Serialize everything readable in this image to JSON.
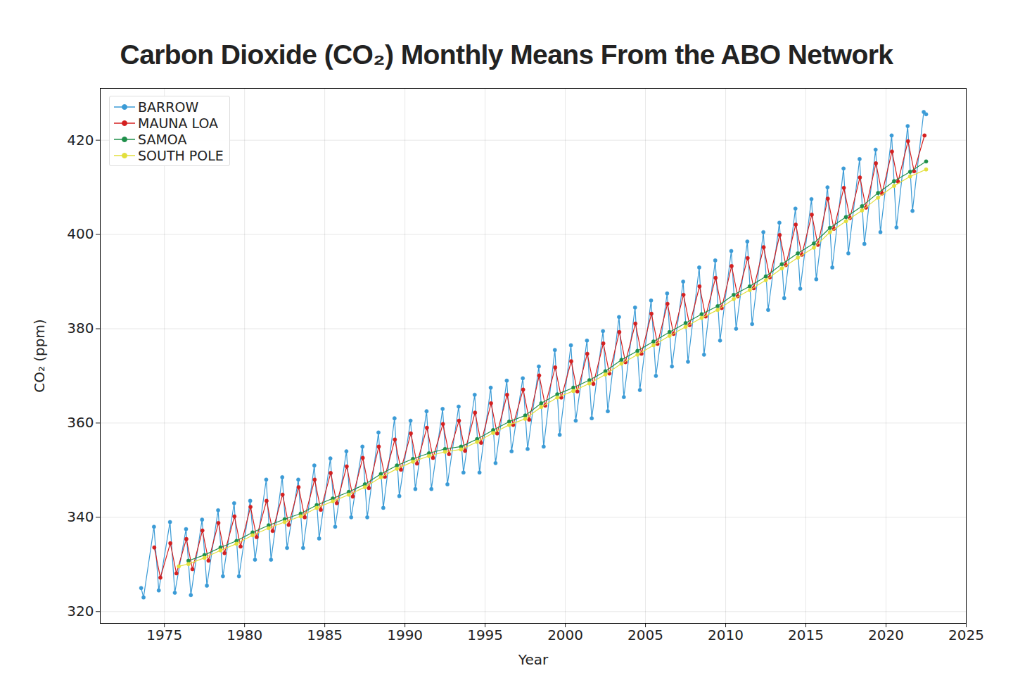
{
  "chart_data": {
    "type": "line",
    "title": "Carbon Dioxide (CO₂) Monthly Means From the ABO Network",
    "x_label": "Year",
    "y_label": "CO₂ (ppm)",
    "xlim": [
      1971,
      2025
    ],
    "xticks": [
      1975,
      1980,
      1985,
      1990,
      1995,
      2000,
      2005,
      2010,
      2015,
      2020,
      2025
    ],
    "ylim": [
      317.5,
      431
    ],
    "yticks": [
      320,
      340,
      360,
      380,
      400,
      420
    ],
    "grid": true,
    "legend": "upper left",
    "series": [
      {
        "name": "BARROW",
        "color": "#3b9bd6",
        "marker": "circle",
        "x": [
          1973.55,
          1973.7,
          1974.35,
          1974.65,
          1975.35,
          1975.65,
          1976.35,
          1976.65,
          1977.35,
          1977.65,
          1978.35,
          1978.65,
          1979.35,
          1979.65,
          1980.35,
          1980.65,
          1981.35,
          1981.65,
          1982.35,
          1982.65,
          1983.35,
          1983.65,
          1984.35,
          1984.65,
          1985.35,
          1985.65,
          1986.35,
          1986.65,
          1987.35,
          1987.65,
          1988.35,
          1988.65,
          1989.35,
          1989.65,
          1990.35,
          1990.65,
          1991.35,
          1991.65,
          1992.35,
          1992.65,
          1993.35,
          1993.65,
          1994.35,
          1994.65,
          1995.35,
          1995.65,
          1996.35,
          1996.65,
          1997.35,
          1997.65,
          1998.35,
          1998.65,
          1999.35,
          1999.65,
          2000.35,
          2000.65,
          2001.35,
          2001.65,
          2002.35,
          2002.65,
          2003.35,
          2003.65,
          2004.35,
          2004.65,
          2005.35,
          2005.65,
          2006.35,
          2006.65,
          2007.35,
          2007.65,
          2008.35,
          2008.65,
          2009.35,
          2009.65,
          2010.35,
          2010.65,
          2011.35,
          2011.65,
          2012.35,
          2012.65,
          2013.35,
          2013.65,
          2014.35,
          2014.65,
          2015.35,
          2015.65,
          2016.35,
          2016.65,
          2017.35,
          2017.65,
          2018.35,
          2018.65,
          2019.35,
          2019.65,
          2020.35,
          2020.65,
          2021.35,
          2021.65,
          2022.35,
          2022.5
        ],
        "values": [
          325.0,
          323.0,
          338.0,
          324.5,
          339.0,
          324.0,
          337.5,
          323.5,
          339.5,
          325.5,
          341.5,
          327.5,
          343.0,
          327.5,
          343.5,
          331.0,
          348.0,
          331.0,
          348.5,
          333.5,
          348.0,
          333.5,
          351.0,
          335.5,
          352.5,
          338.0,
          354.0,
          340.0,
          355.0,
          340.0,
          358.0,
          342.0,
          361.0,
          344.5,
          360.5,
          346.0,
          362.5,
          346.0,
          363.0,
          347.0,
          363.5,
          349.5,
          366.0,
          349.5,
          367.5,
          351.5,
          369.0,
          354.0,
          369.5,
          354.5,
          372.0,
          355.0,
          375.5,
          357.5,
          376.5,
          360.5,
          377.5,
          361.0,
          379.5,
          362.5,
          382.5,
          365.5,
          384.5,
          367.0,
          386.0,
          370.0,
          387.5,
          372.0,
          390.0,
          373.0,
          393.0,
          374.5,
          394.5,
          377.5,
          396.5,
          380.0,
          398.5,
          381.0,
          400.5,
          384.0,
          402.5,
          386.5,
          405.5,
          388.5,
          407.5,
          390.5,
          410.0,
          393.0,
          414.0,
          396.0,
          416.0,
          398.0,
          418.0,
          400.5,
          421.0,
          401.5,
          423.0,
          405.0,
          426.0,
          425.5
        ]
      },
      {
        "name": "MAUNA LOA",
        "color": "#d42020",
        "marker": "circle",
        "x": [
          1974.37,
          1974.75,
          1975.37,
          1975.75,
          1976.37,
          1976.75,
          1977.37,
          1977.75,
          1978.37,
          1978.75,
          1979.37,
          1979.75,
          1980.37,
          1980.75,
          1981.37,
          1981.75,
          1982.37,
          1982.75,
          1983.37,
          1983.75,
          1984.37,
          1984.75,
          1985.37,
          1985.75,
          1986.37,
          1986.75,
          1987.37,
          1987.75,
          1988.37,
          1988.75,
          1989.37,
          1989.75,
          1990.37,
          1990.75,
          1991.37,
          1991.75,
          1992.37,
          1992.75,
          1993.37,
          1993.75,
          1994.37,
          1994.75,
          1995.37,
          1995.75,
          1996.37,
          1996.75,
          1997.37,
          1997.75,
          1998.37,
          1998.75,
          1999.37,
          1999.75,
          2000.37,
          2000.75,
          2001.37,
          2001.75,
          2002.37,
          2002.75,
          2003.37,
          2003.75,
          2004.37,
          2004.75,
          2005.37,
          2005.75,
          2006.37,
          2006.75,
          2007.37,
          2007.75,
          2008.37,
          2008.75,
          2009.37,
          2009.75,
          2010.37,
          2010.75,
          2011.37,
          2011.75,
          2012.37,
          2012.75,
          2013.37,
          2013.75,
          2014.37,
          2014.75,
          2015.37,
          2015.75,
          2016.37,
          2016.75,
          2017.37,
          2017.75,
          2018.37,
          2018.75,
          2019.37,
          2019.75,
          2020.37,
          2020.75,
          2021.37,
          2021.75,
          2022.4
        ],
        "values": [
          333.6,
          327.2,
          334.5,
          328.1,
          335.4,
          329.0,
          337.2,
          330.8,
          338.8,
          332.4,
          340.2,
          333.8,
          342.2,
          335.8,
          343.5,
          337.1,
          344.8,
          338.4,
          346.4,
          340.0,
          348.0,
          341.6,
          349.4,
          343.0,
          350.8,
          344.4,
          352.6,
          346.2,
          355.0,
          348.6,
          356.5,
          350.1,
          357.8,
          351.4,
          359.0,
          352.6,
          359.8,
          353.4,
          360.5,
          354.1,
          362.2,
          355.8,
          364.2,
          357.8,
          366.0,
          359.6,
          367.1,
          360.7,
          370.1,
          363.7,
          371.8,
          365.4,
          373.1,
          366.7,
          374.7,
          368.3,
          376.9,
          370.5,
          379.3,
          372.9,
          381.1,
          374.7,
          383.2,
          376.8,
          385.3,
          378.9,
          387.2,
          380.8,
          389.0,
          382.6,
          390.8,
          384.4,
          393.3,
          386.9,
          395.0,
          388.6,
          397.3,
          390.9,
          399.9,
          393.5,
          402.1,
          395.7,
          404.2,
          397.8,
          407.6,
          401.2,
          409.9,
          403.5,
          412.1,
          405.7,
          415.1,
          408.7,
          417.6,
          411.2,
          419.8,
          413.4,
          421.0
        ]
      },
      {
        "name": "SAMOA",
        "color": "#1f8f4a",
        "marker": "circle",
        "x": [
          1976.5,
          1977.5,
          1978.5,
          1979.5,
          1980.5,
          1981.5,
          1982.5,
          1983.5,
          1984.5,
          1985.5,
          1986.5,
          1987.5,
          1988.5,
          1989.5,
          1990.5,
          1991.5,
          1992.5,
          1993.5,
          1994.5,
          1995.5,
          1996.5,
          1997.5,
          1998.5,
          1999.5,
          2000.5,
          2001.5,
          2002.5,
          2003.5,
          2004.5,
          2005.5,
          2006.5,
          2007.5,
          2008.5,
          2009.5,
          2010.5,
          2011.5,
          2012.5,
          2013.5,
          2014.5,
          2015.5,
          2016.5,
          2017.5,
          2018.5,
          2019.5,
          2020.5,
          2021.5,
          2022.5
        ],
        "values": [
          330.8,
          332.0,
          333.6,
          335.0,
          336.8,
          338.3,
          339.6,
          340.8,
          342.6,
          344.0,
          345.4,
          347.0,
          349.2,
          351.0,
          352.4,
          353.6,
          354.5,
          355.0,
          356.6,
          358.5,
          360.3,
          361.6,
          364.2,
          366.1,
          367.5,
          369.1,
          371.0,
          373.4,
          375.3,
          377.3,
          379.3,
          381.2,
          383.1,
          384.8,
          387.2,
          389.0,
          391.1,
          393.7,
          396.0,
          398.1,
          401.4,
          403.7,
          406.0,
          408.8,
          411.3,
          413.3,
          415.5
        ]
      },
      {
        "name": "SOUTH POLE",
        "color": "#e2df3c",
        "marker": "circle",
        "x": [
          1975.9,
          1976.5,
          1977.5,
          1978.5,
          1979.5,
          1980.5,
          1981.5,
          1982.5,
          1983.5,
          1984.5,
          1985.5,
          1986.5,
          1987.5,
          1988.5,
          1989.5,
          1990.5,
          1991.5,
          1992.5,
          1993.5,
          1994.5,
          1995.5,
          1996.5,
          1997.5,
          1998.5,
          1999.5,
          2000.5,
          2001.5,
          2002.5,
          2003.5,
          2004.5,
          2005.5,
          2006.5,
          2007.5,
          2008.5,
          2009.5,
          2010.5,
          2011.5,
          2012.5,
          2013.5,
          2014.5,
          2015.5,
          2016.5,
          2017.5,
          2018.5,
          2019.5,
          2020.5,
          2021.5,
          2022.5
        ],
        "values": [
          329.6,
          330.1,
          331.4,
          333.0,
          334.4,
          336.2,
          337.7,
          339.0,
          340.2,
          342.0,
          343.4,
          344.8,
          346.4,
          348.5,
          350.3,
          351.8,
          353.0,
          353.9,
          354.4,
          356.0,
          357.9,
          359.6,
          360.9,
          363.4,
          365.4,
          366.8,
          368.4,
          370.3,
          372.6,
          374.5,
          376.5,
          378.5,
          380.4,
          382.3,
          384.0,
          386.3,
          388.2,
          390.3,
          392.8,
          395.1,
          397.2,
          400.5,
          402.8,
          405.1,
          407.8,
          410.3,
          412.3,
          413.8
        ]
      }
    ]
  }
}
